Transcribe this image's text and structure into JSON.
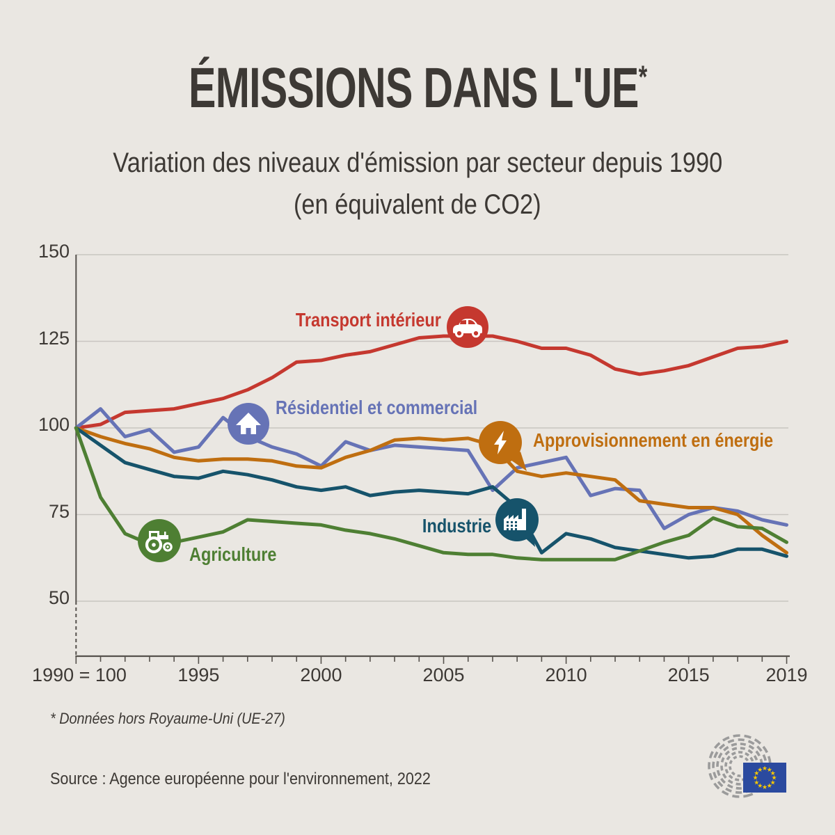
{
  "page": {
    "background": "#eae7e2"
  },
  "header": {
    "title": "ÉMISSIONS DANS L'UE",
    "title_note_marker": "*",
    "subtitle_line1": "Variation des niveaux d'émission par secteur depuis 1990",
    "subtitle_line2": "(en équivalent de CO2)"
  },
  "chart_data": {
    "type": "line",
    "title": "Variation des niveaux d'émission par secteur depuis 1990 (en équivalent de CO2)",
    "index_note": "1990 = 100",
    "x": [
      1990,
      1991,
      1992,
      1993,
      1994,
      1995,
      1996,
      1997,
      1998,
      1999,
      2000,
      2001,
      2002,
      2003,
      2004,
      2005,
      2006,
      2007,
      2008,
      2009,
      2010,
      2011,
      2012,
      2013,
      2014,
      2015,
      2016,
      2017,
      2018,
      2019
    ],
    "x_axis": {
      "tick_labels": [
        {
          "label": "1990 = 100",
          "year": 1990
        },
        {
          "label": "1995",
          "year": 1995
        },
        {
          "label": "2000",
          "year": 2000
        },
        {
          "label": "2005",
          "year": 2005
        },
        {
          "label": "2010",
          "year": 2010
        },
        {
          "label": "2015",
          "year": 2015
        },
        {
          "label": "2019",
          "year": 2019
        }
      ]
    },
    "y_axis": {
      "ticks": [
        150,
        125,
        100,
        75,
        50
      ],
      "range": [
        50,
        150
      ],
      "grid": true
    },
    "legend_position": "inline-on-lines",
    "series": [
      {
        "id": "transport",
        "label": "Transport intérieur",
        "color": "#c5382f",
        "icon": "car-icon",
        "values": [
          100,
          101,
          104.5,
          105,
          105.5,
          107,
          108.5,
          111,
          114.5,
          119,
          119.5,
          121,
          122,
          124,
          126,
          126.5,
          126.5,
          126.5,
          125,
          123,
          123,
          121,
          117,
          115.5,
          116.5,
          118,
          120.5,
          123,
          123.5,
          125
        ]
      },
      {
        "id": "residential",
        "label": "Résidentiel et commercial",
        "color": "#6673b6",
        "icon": "house-icon",
        "values": [
          100,
          105.5,
          97.5,
          99.5,
          93,
          94.5,
          103,
          97.5,
          94.5,
          92.5,
          89,
          96,
          93.5,
          95,
          94.5,
          94,
          93.5,
          82,
          88.5,
          90,
          91.5,
          80.5,
          82.5,
          82,
          71,
          75,
          77,
          76,
          73.5,
          72
        ]
      },
      {
        "id": "energy",
        "label": "Approvisionnement en énergie",
        "color": "#bf6e10",
        "icon": "lightning-icon",
        "values": [
          100,
          97.5,
          95.5,
          94,
          91.5,
          90.5,
          91,
          91,
          90.5,
          89,
          88.5,
          91.5,
          93.5,
          96.5,
          97,
          96.5,
          97,
          95,
          87.5,
          86,
          87,
          86,
          85,
          79,
          78,
          77,
          77,
          75,
          69,
          64
        ]
      },
      {
        "id": "industry",
        "label": "Industrie",
        "color": "#16536b",
        "icon": "factory-icon",
        "values": [
          100,
          95,
          90,
          88,
          86,
          85.5,
          87.5,
          86.5,
          85,
          83,
          82,
          83,
          80.5,
          81.5,
          82,
          81.5,
          81,
          83,
          77,
          64,
          69.5,
          68,
          65.5,
          64.5,
          63.5,
          62.5,
          63,
          65,
          65,
          63
        ]
      },
      {
        "id": "agriculture",
        "label": "Agriculture",
        "color": "#4e7f33",
        "icon": "tractor-icon",
        "values": [
          100,
          80,
          69.5,
          66.5,
          67,
          68.5,
          70,
          73.5,
          73,
          72.5,
          72,
          70.5,
          69.5,
          68,
          66,
          64,
          63.5,
          63.5,
          62.5,
          62,
          62,
          62,
          62,
          64.5,
          67,
          69,
          74,
          71.5,
          71,
          67
        ]
      }
    ]
  },
  "footer": {
    "footnote": "* Données hors Royaume-Uni (UE-27)",
    "source": "Source : Agence européenne pour l'environnement, 2022",
    "logo": "european-parliament-logo"
  }
}
